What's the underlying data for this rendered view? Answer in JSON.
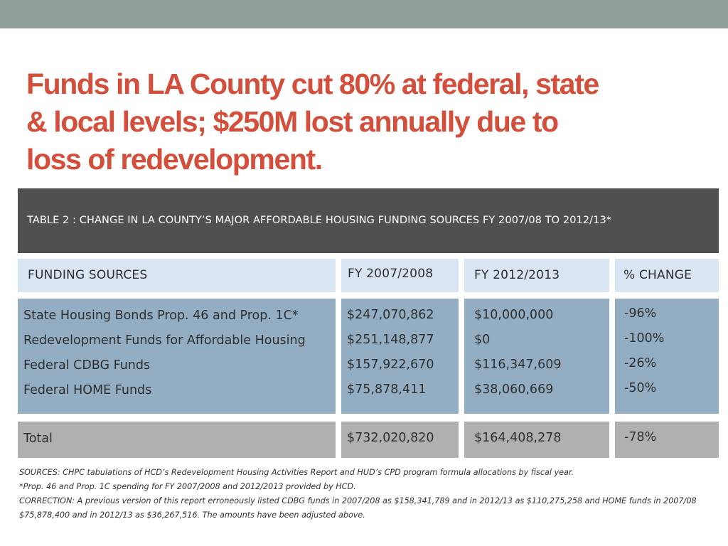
{
  "slide": {
    "title_lines": [
      "Funds in LA County cut 80% at federal, state",
      "& local levels; $250M lost annually due to",
      "loss of redevelopment."
    ]
  },
  "table": {
    "label": "TABLE 2 :",
    "caption": "CHANGE IN LA COUNTY’S MAJOR AFFORDABLE HOUSING FUNDING SOURCES FY 2007/08 TO 2012/13*",
    "columns": [
      "FUNDING SOURCES",
      "FY 2007/2008",
      "FY 2012/2013",
      "% CHANGE"
    ],
    "rows": [
      {
        "source": "State Housing Bonds Prop. 46 and Prop. 1C*",
        "fy2008": "$247,070,862",
        "fy2013": "$10,000,000",
        "change": "-96%"
      },
      {
        "source": "Redevelopment Funds for Affordable Housing",
        "fy2008": "$251,148,877",
        "fy2013": "$0",
        "change": "-100%"
      },
      {
        "source": "Federal CDBG Funds",
        "fy2008": "$157,922,670",
        "fy2013": "$116,347,609",
        "change": "-26%"
      },
      {
        "source": "Federal HOME Funds",
        "fy2008": "$75,878,411",
        "fy2013": "$38,060,669",
        "change": "-50%"
      }
    ],
    "total": {
      "label": "Total",
      "fy2008": "$732,020,820",
      "fy2013": "$164,408,278",
      "change": "-78%"
    }
  },
  "notes": [
    "SOURCES: CHPC tabulations of HCD’s Redevelopment Housing Activities Report and HUD’s CPD program formula allocations by fiscal year.",
    "*Prop. 46 and Prop. 1C spending for FY 2007/2008 and 2012/2013 provided by HCD.",
    "CORRECTION: A previous version of this report erroneously listed CDBG funds in 2007/208 as $158,341,789 and in 2012/13 as $110,275,258 and HOME funds in 2007/08",
    "$75,878,400 and in 2012/13 as $36,267,516. The amounts have been adjusted above."
  ]
}
